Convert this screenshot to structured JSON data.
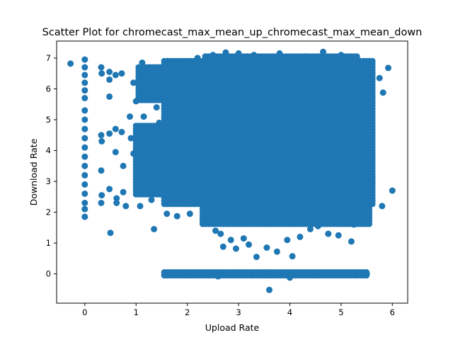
{
  "chart_data": {
    "type": "scatter",
    "title": "Scatter Plot for chromecast_max_mean_up_chromecast_max_mean_down",
    "xlabel": "Upload Rate",
    "ylabel": "Download Rate",
    "xlim": [
      -0.55,
      6.3
    ],
    "ylim": [
      -0.95,
      7.55
    ],
    "xticks": [
      0,
      1,
      2,
      3,
      4,
      5,
      6
    ],
    "yticks": [
      0,
      1,
      2,
      3,
      4,
      5,
      6,
      7
    ],
    "grid": false,
    "legend": "none",
    "marker_color": "#1f77b4",
    "points": [
      [
        -0.28,
        6.82
      ],
      [
        5.92,
        6.68
      ],
      [
        6.0,
        2.7
      ],
      [
        5.8,
        2.2
      ],
      [
        5.75,
        6.35
      ],
      [
        5.82,
        5.88
      ],
      [
        0.0,
        6.95
      ],
      [
        0.0,
        6.7
      ],
      [
        0.0,
        6.45
      ],
      [
        0.0,
        6.2
      ],
      [
        0.0,
        5.95
      ],
      [
        0.0,
        5.7
      ],
      [
        0.0,
        5.3
      ],
      [
        0.0,
        5.0
      ],
      [
        0.0,
        4.7
      ],
      [
        0.0,
        4.4
      ],
      [
        0.0,
        4.1
      ],
      [
        0.0,
        3.8
      ],
      [
        0.0,
        3.5
      ],
      [
        0.0,
        3.2
      ],
      [
        0.0,
        2.9
      ],
      [
        0.0,
        2.6
      ],
      [
        0.0,
        2.3
      ],
      [
        0.0,
        2.1
      ],
      [
        0.0,
        1.85
      ],
      [
        0.32,
        6.7
      ],
      [
        0.33,
        6.5
      ],
      [
        0.32,
        4.5
      ],
      [
        0.33,
        4.3
      ],
      [
        0.32,
        3.35
      ],
      [
        0.33,
        2.55
      ],
      [
        0.32,
        2.3
      ],
      [
        0.48,
        6.55
      ],
      [
        0.48,
        6.3
      ],
      [
        0.48,
        5.75
      ],
      [
        0.48,
        4.55
      ],
      [
        0.48,
        2.75
      ],
      [
        0.5,
        1.33
      ],
      [
        0.6,
        6.45
      ],
      [
        0.6,
        4.7
      ],
      [
        0.6,
        3.95
      ],
      [
        0.62,
        2.45
      ],
      [
        0.62,
        2.3
      ],
      [
        0.72,
        6.5
      ],
      [
        0.72,
        4.6
      ],
      [
        0.75,
        3.5
      ],
      [
        0.75,
        2.65
      ],
      [
        0.8,
        2.2
      ],
      [
        0.88,
        5.1
      ],
      [
        0.9,
        4.4
      ],
      [
        0.95,
        3.9
      ],
      [
        0.95,
        6.2
      ],
      [
        1.0,
        5.6
      ],
      [
        1.05,
        3.3
      ],
      [
        1.08,
        2.2
      ],
      [
        1.12,
        6.85
      ],
      [
        1.15,
        5.1
      ],
      [
        1.2,
        4.05
      ],
      [
        1.25,
        3.0
      ],
      [
        1.3,
        2.4
      ],
      [
        1.35,
        1.45
      ],
      [
        1.38,
        6.4
      ],
      [
        1.4,
        5.4
      ],
      [
        1.45,
        4.9
      ],
      [
        1.5,
        3.6
      ],
      [
        1.55,
        2.8
      ],
      [
        1.6,
        1.95
      ],
      [
        1.65,
        6.6
      ],
      [
        1.72,
        5.2
      ],
      [
        1.78,
        4.3
      ],
      [
        1.8,
        1.87
      ],
      [
        2.05,
        1.95
      ],
      [
        2.3,
        1.75
      ],
      [
        2.55,
        1.4
      ],
      [
        2.65,
        1.3
      ],
      [
        2.7,
        0.88
      ],
      [
        2.85,
        1.1
      ],
      [
        2.95,
        0.82
      ],
      [
        3.1,
        1.15
      ],
      [
        3.2,
        0.95
      ],
      [
        3.35,
        0.55
      ],
      [
        3.55,
        0.85
      ],
      [
        3.75,
        0.72
      ],
      [
        3.95,
        1.1
      ],
      [
        4.05,
        0.57
      ],
      [
        4.2,
        1.2
      ],
      [
        4.4,
        1.45
      ],
      [
        4.55,
        1.55
      ],
      [
        4.75,
        1.3
      ],
      [
        4.95,
        1.25
      ],
      [
        5.2,
        1.05
      ],
      [
        5.25,
        1.6
      ],
      [
        3.6,
        -0.52
      ],
      [
        5.5,
        0.0
      ],
      [
        4.0,
        -0.12
      ],
      [
        2.6,
        -0.08
      ],
      [
        3.0,
        7.15
      ],
      [
        3.3,
        7.1
      ],
      [
        3.8,
        7.15
      ],
      [
        4.3,
        7.05
      ],
      [
        4.65,
        7.2
      ],
      [
        5.0,
        7.1
      ],
      [
        5.3,
        6.95
      ],
      [
        5.5,
        6.85
      ],
      [
        5.6,
        6.72
      ],
      [
        2.2,
        7.0
      ],
      [
        2.5,
        7.1
      ],
      [
        2.75,
        7.18
      ]
    ],
    "dense_regions": [
      {
        "x": [
          1.55,
          5.65
        ],
        "y": [
          2.2,
          6.9
        ]
      },
      {
        "x": [
          2.35,
          5.35
        ],
        "y": [
          1.95,
          7.05
        ]
      },
      {
        "x": [
          2.85,
          4.65
        ],
        "y": [
          1.55,
          6.95
        ]
      },
      {
        "x": [
          1.0,
          1.85
        ],
        "y": [
          2.5,
          4.8
        ]
      },
      {
        "x": [
          1.05,
          2.3
        ],
        "y": [
          5.6,
          6.7
        ]
      },
      {
        "x": [
          2.3,
          5.55
        ],
        "y": [
          1.6,
          2.2
        ]
      },
      {
        "x": [
          1.55,
          5.5
        ],
        "y": [
          -0.05,
          0.05
        ]
      }
    ]
  }
}
